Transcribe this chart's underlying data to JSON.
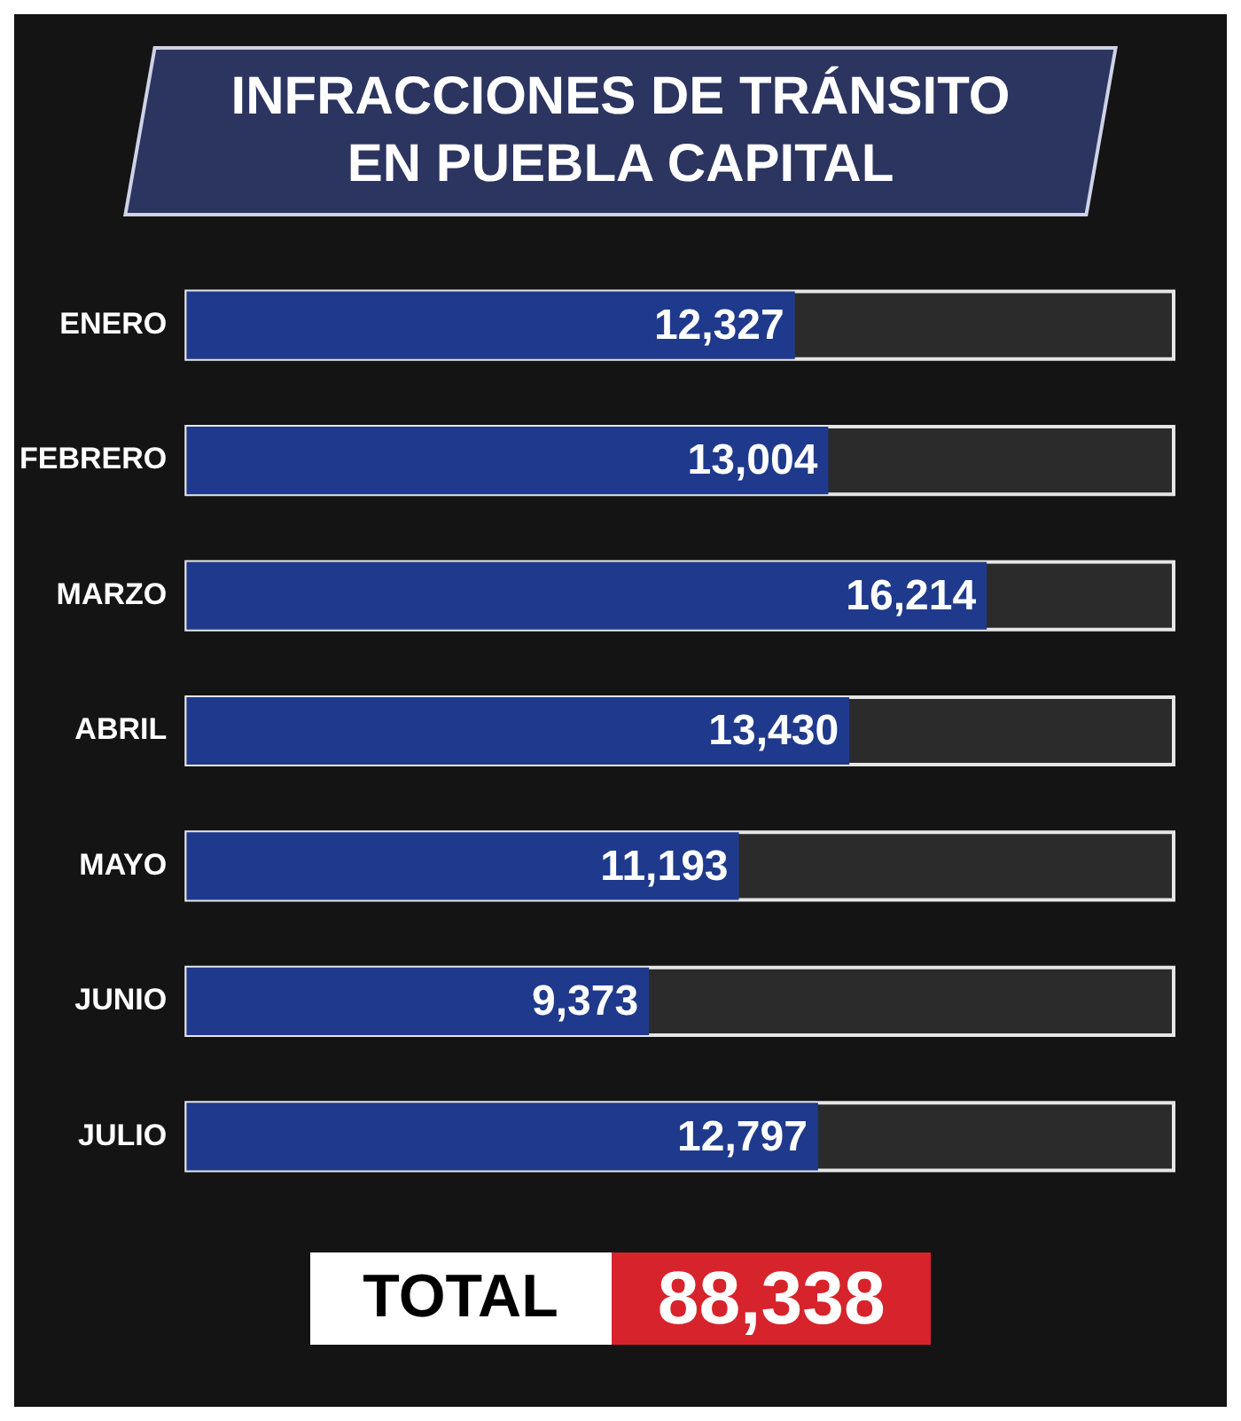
{
  "chart_data": {
    "type": "bar",
    "title": "INFRACCIONES DE TRÁNSITO EN PUEBLA CAPITAL",
    "orientation": "horizontal",
    "categories": [
      "ENERO",
      "FEBRERO",
      "MARZO",
      "ABRIL",
      "MAYO",
      "JUNIO",
      "JULIO"
    ],
    "values": [
      12327,
      13004,
      16214,
      13430,
      11193,
      9373,
      12797
    ],
    "value_labels": [
      "12,327",
      "13,004",
      "16,214",
      "13,430",
      "11,193",
      "9,373",
      "12,797"
    ],
    "color": "#1f3a8c",
    "xlim": [
      0,
      20000
    ],
    "tick_labels": "y",
    "legend": false,
    "annotations": [
      "TOTAL",
      "88,338"
    ]
  }
}
